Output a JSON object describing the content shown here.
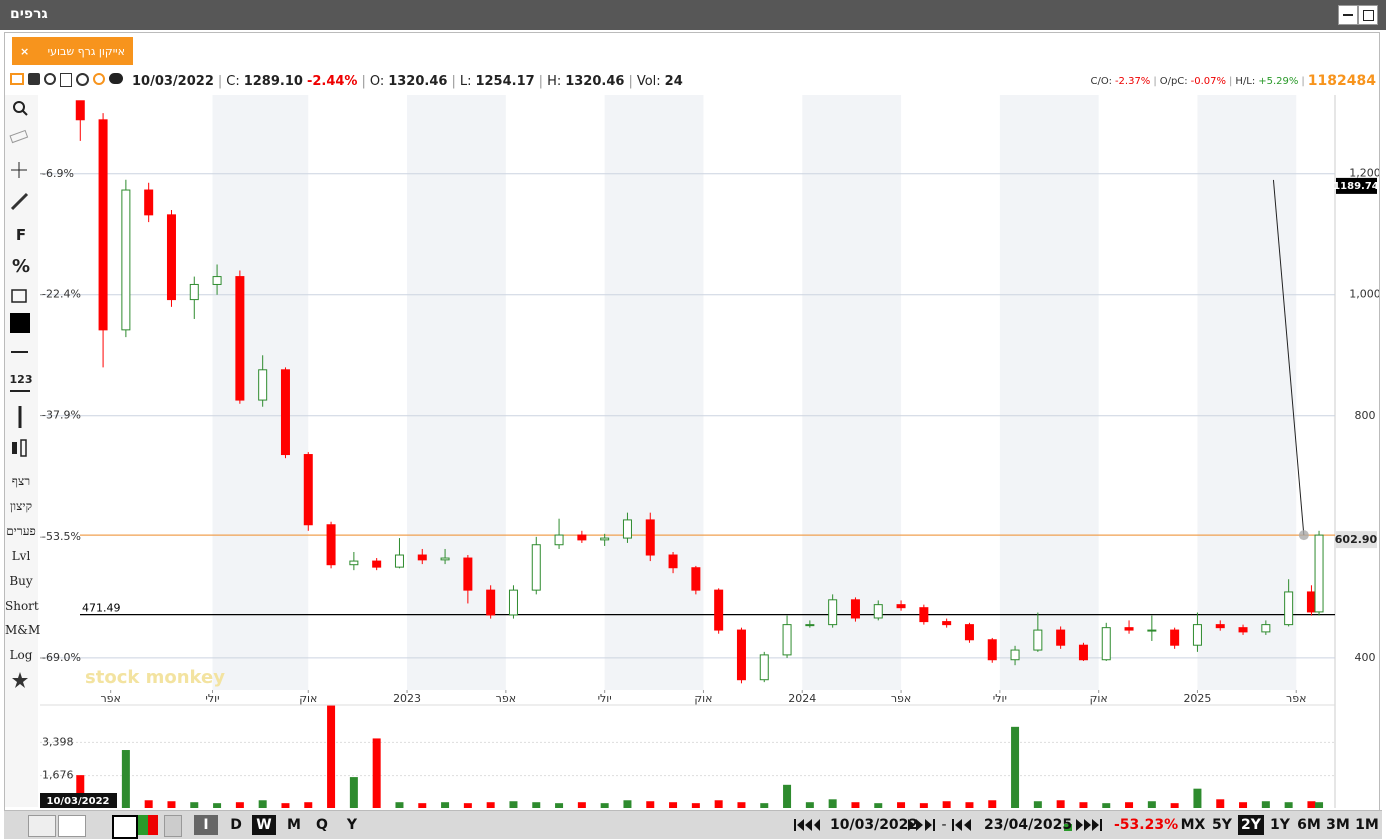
{
  "header": {
    "title": "גרפים"
  },
  "tab": {
    "label": "אייקון גרף שבועי",
    "close": "×"
  },
  "info": {
    "date": "10/03/2022",
    "close_label": "C:",
    "close": "1289.10",
    "change": "-2.44%",
    "open_label": "O:",
    "open": "1320.46",
    "low_label": "L:",
    "low": "1254.17",
    "high_label": "H:",
    "high": "1320.46",
    "vol_label": "Vol:",
    "vol": "24",
    "co_label": "C/O:",
    "co": "-2.37%",
    "opc_label": "O/pC:",
    "opc": "-0.07%",
    "hl_label": "H/L:",
    "hl": "+5.29%",
    "id": "1182484"
  },
  "left_tools": {
    "icons_text": [
      "F",
      "%",
      "123"
    ],
    "labels": [
      "רצף",
      "קיצון",
      "פערים",
      "Lvl",
      "Buy",
      "Short",
      "M&M",
      "Log"
    ]
  },
  "chart_data": [
    {
      "type": "candlestick",
      "x": [
        0,
        3,
        6,
        9,
        12,
        15,
        18,
        21,
        24,
        27,
        30,
        33,
        36,
        39,
        42,
        45,
        48,
        51,
        54,
        57,
        60,
        63,
        66,
        69,
        72,
        75,
        78,
        81,
        84,
        87,
        90,
        93,
        96,
        99,
        102,
        105,
        108,
        111,
        114,
        117,
        120,
        123,
        126,
        129,
        132,
        135,
        138,
        141,
        144,
        147,
        150,
        153,
        156,
        159,
        162,
        163
      ],
      "open": [
        1320.46,
        1289,
        942,
        1173,
        1132,
        992,
        1017,
        1030,
        826,
        876,
        736,
        620,
        554,
        560,
        550,
        570,
        562,
        565,
        512,
        471,
        512,
        587,
        603,
        595,
        598,
        628,
        570,
        549,
        512,
        446,
        364,
        405,
        455,
        455,
        496,
        466,
        488,
        483,
        460,
        455,
        430,
        397,
        413,
        446,
        421,
        397,
        450,
        446,
        446,
        421,
        455,
        450,
        443,
        455,
        509,
        476
      ],
      "high": [
        1320.46,
        1300,
        1190,
        1185,
        1140,
        1030,
        1050,
        1040,
        900,
        880,
        740,
        625,
        575,
        565,
        598,
        580,
        580,
        570,
        520,
        520,
        600,
        630,
        610,
        605,
        640,
        640,
        575,
        552,
        515,
        450,
        410,
        470,
        462,
        505,
        500,
        495,
        495,
        488,
        465,
        458,
        433,
        420,
        475,
        452,
        425,
        458,
        462,
        470,
        450,
        475,
        462,
        455,
        462,
        530,
        520,
        610
      ],
      "low": [
        1254.17,
        880,
        930,
        1120,
        980,
        960,
        1000,
        820,
        815,
        730,
        610,
        548,
        545,
        545,
        548,
        555,
        555,
        490,
        465,
        465,
        505,
        580,
        590,
        585,
        590,
        560,
        540,
        505,
        440,
        358,
        360,
        400,
        450,
        450,
        460,
        462,
        478,
        455,
        450,
        425,
        392,
        388,
        410,
        415,
        395,
        395,
        440,
        428,
        415,
        410,
        445,
        438,
        438,
        452,
        470,
        470
      ],
      "close": [
        1289.1,
        942,
        1173,
        1132,
        992,
        1017,
        1030,
        826,
        876,
        736,
        620,
        554,
        560,
        550,
        570,
        562,
        565,
        512,
        471,
        512,
        587,
        603,
        595,
        598,
        628,
        570,
        549,
        512,
        446,
        364,
        405,
        455,
        455,
        496,
        466,
        488,
        483,
        460,
        455,
        430,
        397,
        413,
        446,
        421,
        397,
        450,
        446,
        446,
        421,
        455,
        450,
        443,
        455,
        509,
        476,
        602.9
      ],
      "up_color": "#2e8b2e",
      "down_color": "#ff0000",
      "xlim": [
        -5.3,
        165.1
      ],
      "xticks": [
        {
          "value": 4,
          "label": "אפר"
        },
        {
          "value": 17.4,
          "label": "יולי"
        },
        {
          "value": 30,
          "label": "אוק"
        },
        {
          "value": 43,
          "label": "2023"
        },
        {
          "value": 56,
          "label": "אפר"
        },
        {
          "value": 69,
          "label": "יולי"
        },
        {
          "value": 82,
          "label": "אוק"
        },
        {
          "value": 95,
          "label": "2024"
        },
        {
          "value": 108,
          "label": "אפר"
        },
        {
          "value": 121,
          "label": "יולי"
        },
        {
          "value": 134,
          "label": "אוק"
        },
        {
          "value": 147,
          "label": "2025"
        },
        {
          "value": 160,
          "label": "אפר"
        }
      ],
      "ylim": [
        347,
        1330
      ],
      "yticks": [
        400,
        800,
        {
          "value": 1000,
          "label": "1,000"
        },
        {
          "value": 1200,
          "label": "1,200"
        }
      ],
      "y2lim": [
        -73.1,
        3.2
      ],
      "y2ticks": [
        {
          "value": -69.0,
          "label": "-69.0%"
        },
        {
          "value": -53.5,
          "label": "-53.5%"
        },
        {
          "value": -37.9,
          "label": "-37.9%"
        },
        {
          "value": -22.4,
          "label": "-22.4%"
        },
        {
          "value": -6.9,
          "label": "-6.9%"
        }
      ],
      "hlines": [
        {
          "value": 471.49,
          "label": "471.49",
          "color": "#000000"
        },
        {
          "value": 602.9,
          "label": "602.90",
          "color": "#f0a050"
        }
      ],
      "trendline": {
        "x": [
          157,
          161
        ],
        "values": [
          1189.74,
          602.9
        ],
        "label": "1189.74"
      },
      "watermark": "stock monkey",
      "grid": true
    },
    {
      "type": "bar",
      "x": [
        0,
        3,
        6,
        9,
        12,
        15,
        18,
        21,
        24,
        27,
        30,
        33,
        36,
        39,
        42,
        45,
        48,
        51,
        54,
        57,
        60,
        63,
        66,
        69,
        72,
        75,
        78,
        81,
        84,
        87,
        90,
        93,
        96,
        99,
        102,
        105,
        108,
        111,
        114,
        117,
        120,
        123,
        126,
        129,
        132,
        135,
        138,
        141,
        144,
        147,
        150,
        153,
        156,
        159,
        162,
        163
      ],
      "values": [
        1700,
        600,
        3000,
        400,
        350,
        300,
        250,
        300,
        400,
        250,
        300,
        5300,
        1600,
        3600,
        300,
        250,
        300,
        250,
        300,
        350,
        300,
        250,
        300,
        250,
        400,
        350,
        300,
        250,
        400,
        300,
        250,
        1200,
        300,
        450,
        300,
        250,
        300,
        250,
        350,
        300,
        400,
        4200,
        350,
        400,
        300,
        250,
        300,
        350,
        250,
        1000,
        450,
        300,
        350,
        300,
        350,
        300
      ],
      "xlim": [
        -5.3,
        165.1
      ],
      "ylim": [
        0,
        5330
      ],
      "yticks": [
        {
          "value": 1676,
          "label": "1,676"
        },
        {
          "value": 3398,
          "label": "3,398"
        }
      ],
      "cursor_label": "10/03/2022",
      "grid": true
    }
  ],
  "bottom_bar": {
    "modes": [
      "I",
      "D",
      "W",
      "M",
      "Q",
      "Y"
    ],
    "active_mode": "W",
    "from": "10/03/2022",
    "dash": "-",
    "to": "23/04/2025",
    "change": "-53.23%",
    "periods": [
      "MX",
      "5Y",
      "2Y",
      "1Y",
      "6M",
      "3M",
      "1M"
    ],
    "active_period": "2Y"
  }
}
